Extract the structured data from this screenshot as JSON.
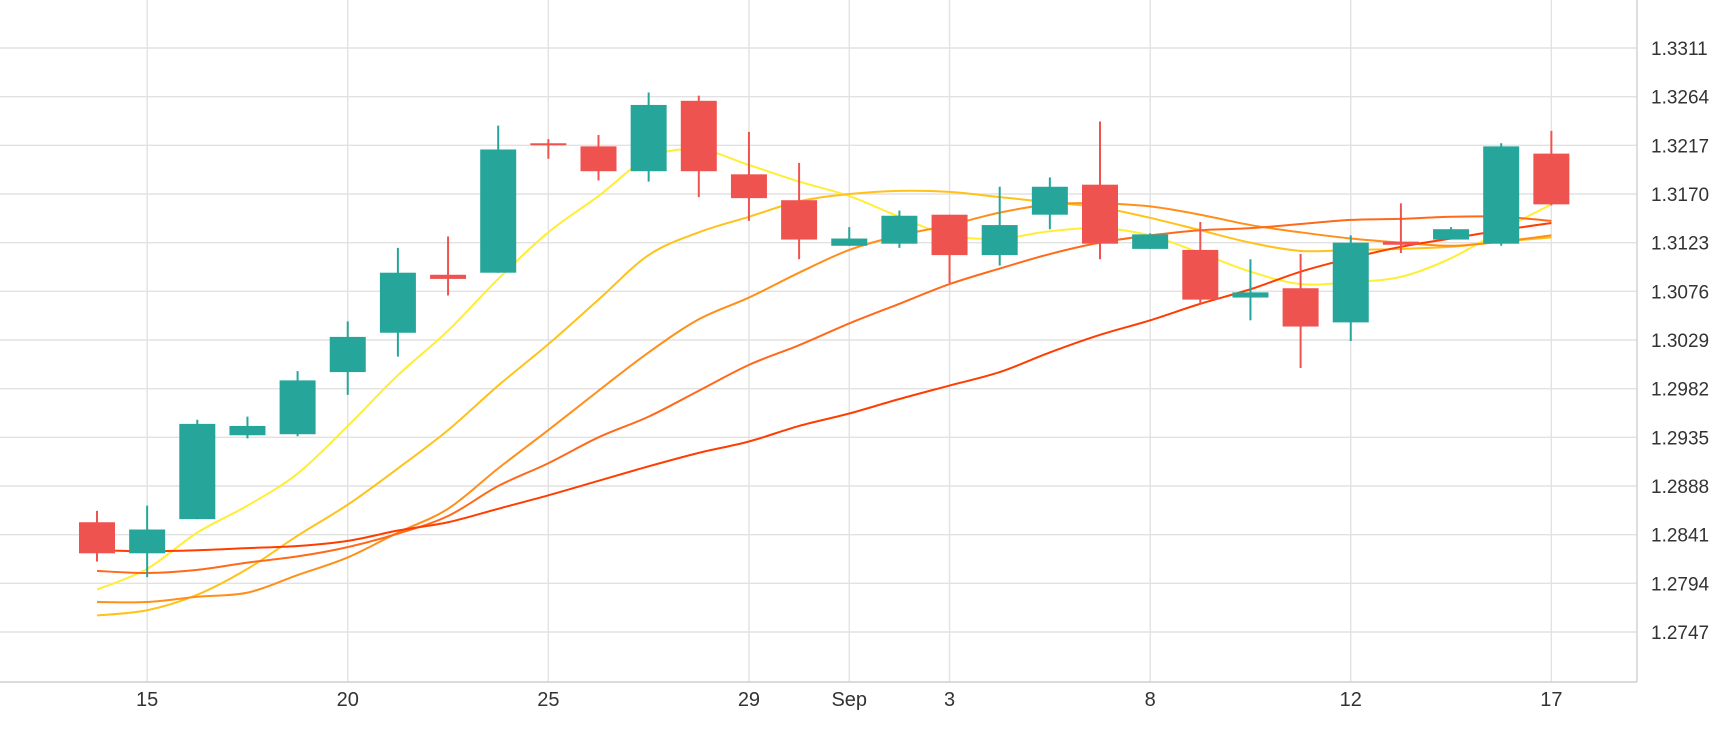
{
  "chart_data": {
    "type": "candlestick",
    "x_ticks": [
      {
        "label": "15",
        "index": 1
      },
      {
        "label": "20",
        "index": 5
      },
      {
        "label": "25",
        "index": 9
      },
      {
        "label": "29",
        "index": 13
      },
      {
        "label": "Sep",
        "index": 15
      },
      {
        "label": "3",
        "index": 17
      },
      {
        "label": "8",
        "index": 21
      },
      {
        "label": "12",
        "index": 25
      },
      {
        "label": "17",
        "index": 29
      }
    ],
    "y_ticks": [
      1.2747,
      1.2794,
      1.2841,
      1.2888,
      1.2935,
      1.2982,
      1.3029,
      1.3076,
      1.3123,
      1.317,
      1.3217,
      1.3264,
      1.3311
    ],
    "ylim": [
      1.27,
      1.3345
    ],
    "grid": true,
    "colors": {
      "up": "#26a69a",
      "down": "#ef5350",
      "grid": "#e2e2e2"
    },
    "candles": [
      {
        "o": 1.2853,
        "h": 1.2864,
        "l": 1.2815,
        "c": 1.2823
      },
      {
        "o": 1.2823,
        "h": 1.2869,
        "l": 1.28,
        "c": 1.2846
      },
      {
        "o": 1.2856,
        "h": 1.2952,
        "l": 1.2856,
        "c": 1.2948
      },
      {
        "o": 1.2937,
        "h": 1.2955,
        "l": 1.2934,
        "c": 1.2946
      },
      {
        "o": 1.2938,
        "h": 1.2999,
        "l": 1.2936,
        "c": 1.299
      },
      {
        "o": 1.2998,
        "h": 1.3047,
        "l": 1.2976,
        "c": 1.3032
      },
      {
        "o": 1.3036,
        "h": 1.3118,
        "l": 1.3013,
        "c": 1.3094
      },
      {
        "o": 1.3092,
        "h": 1.3129,
        "l": 1.3072,
        "c": 1.3088
      },
      {
        "o": 1.3094,
        "h": 1.3236,
        "l": 1.3094,
        "c": 1.3213
      },
      {
        "o": 1.3219,
        "h": 1.3223,
        "l": 1.3204,
        "c": 1.3218
      },
      {
        "o": 1.3216,
        "h": 1.3227,
        "l": 1.3183,
        "c": 1.3192
      },
      {
        "o": 1.3192,
        "h": 1.3268,
        "l": 1.3182,
        "c": 1.3256
      },
      {
        "o": 1.326,
        "h": 1.3265,
        "l": 1.3167,
        "c": 1.3192
      },
      {
        "o": 1.3189,
        "h": 1.323,
        "l": 1.3144,
        "c": 1.3166
      },
      {
        "o": 1.3164,
        "h": 1.32,
        "l": 1.3107,
        "c": 1.3126
      },
      {
        "o": 1.312,
        "h": 1.3138,
        "l": 1.312,
        "c": 1.3127
      },
      {
        "o": 1.3122,
        "h": 1.3154,
        "l": 1.3118,
        "c": 1.3149
      },
      {
        "o": 1.315,
        "h": 1.315,
        "l": 1.3084,
        "c": 1.3111
      },
      {
        "o": 1.3111,
        "h": 1.3177,
        "l": 1.3101,
        "c": 1.314
      },
      {
        "o": 1.315,
        "h": 1.3186,
        "l": 1.3136,
        "c": 1.3177
      },
      {
        "o": 1.3179,
        "h": 1.324,
        "l": 1.3107,
        "c": 1.3122
      },
      {
        "o": 1.3117,
        "h": 1.3132,
        "l": 1.3117,
        "c": 1.3131
      },
      {
        "o": 1.3116,
        "h": 1.3143,
        "l": 1.3063,
        "c": 1.3068
      },
      {
        "o": 1.307,
        "h": 1.3107,
        "l": 1.3048,
        "c": 1.3075
      },
      {
        "o": 1.3079,
        "h": 1.3112,
        "l": 1.3002,
        "c": 1.3042
      },
      {
        "o": 1.3046,
        "h": 1.313,
        "l": 1.3028,
        "c": 1.3123
      },
      {
        "o": 1.3124,
        "h": 1.3161,
        "l": 1.3113,
        "c": 1.3121
      },
      {
        "o": 1.3126,
        "h": 1.3138,
        "l": 1.3126,
        "c": 1.3136
      },
      {
        "o": 1.3122,
        "h": 1.3219,
        "l": 1.312,
        "c": 1.3216
      },
      {
        "o": 1.3209,
        "h": 1.3231,
        "l": 1.3159,
        "c": 1.316
      }
    ],
    "moving_averages": [
      {
        "color": "#ffee33",
        "values": [
          1.2788,
          1.2808,
          1.2843,
          1.2869,
          1.29,
          1.2946,
          1.2995,
          1.3038,
          1.3088,
          1.3133,
          1.3168,
          1.3205,
          1.3213,
          1.3198,
          1.3182,
          1.3168,
          1.3148,
          1.313,
          1.3127,
          1.3134,
          1.3137,
          1.313,
          1.3113,
          1.3095,
          1.3083,
          1.3085,
          1.309,
          1.3108,
          1.3135,
          1.316
        ]
      },
      {
        "color": "#ffc21a",
        "values": [
          1.2763,
          1.2768,
          1.2783,
          1.2808,
          1.284,
          1.287,
          1.2905,
          1.2942,
          1.2985,
          1.3025,
          1.3068,
          1.3111,
          1.3133,
          1.3148,
          1.3163,
          1.317,
          1.3173,
          1.3172,
          1.3167,
          1.3162,
          1.3157,
          1.3147,
          1.3135,
          1.3123,
          1.3115,
          1.3116,
          1.3117,
          1.3119,
          1.3124,
          1.3128
        ]
      },
      {
        "color": "#ff8f1a",
        "values": [
          1.2776,
          1.2776,
          1.2781,
          1.2785,
          1.2802,
          1.2819,
          1.2843,
          1.2866,
          1.2905,
          1.2942,
          1.298,
          1.3017,
          1.3049,
          1.307,
          1.3094,
          1.3116,
          1.313,
          1.314,
          1.3152,
          1.316,
          1.3161,
          1.3158,
          1.315,
          1.314,
          1.3133,
          1.3127,
          1.3123,
          1.312,
          1.3124,
          1.313
        ]
      },
      {
        "color": "#ff6a1a",
        "values": [
          1.2806,
          1.2804,
          1.2807,
          1.2814,
          1.282,
          1.2829,
          1.2842,
          1.2859,
          1.2888,
          1.291,
          1.2935,
          1.2955,
          1.298,
          1.3005,
          1.3024,
          1.3045,
          1.3064,
          1.3083,
          1.3098,
          1.3112,
          1.3123,
          1.313,
          1.3135,
          1.3137,
          1.3141,
          1.3145,
          1.3146,
          1.3148,
          1.3148,
          1.3144
        ]
      },
      {
        "color": "#ff3d00",
        "values": [
          1.2826,
          1.2825,
          1.2826,
          1.2828,
          1.283,
          1.2835,
          1.2845,
          1.2853,
          1.2866,
          1.2879,
          1.2893,
          1.2907,
          1.292,
          1.2931,
          1.2946,
          1.2958,
          1.2972,
          1.2985,
          1.2998,
          1.3017,
          1.3034,
          1.3048,
          1.3064,
          1.3078,
          1.3095,
          1.3108,
          1.3119,
          1.3127,
          1.3135,
          1.3142
        ]
      }
    ]
  }
}
